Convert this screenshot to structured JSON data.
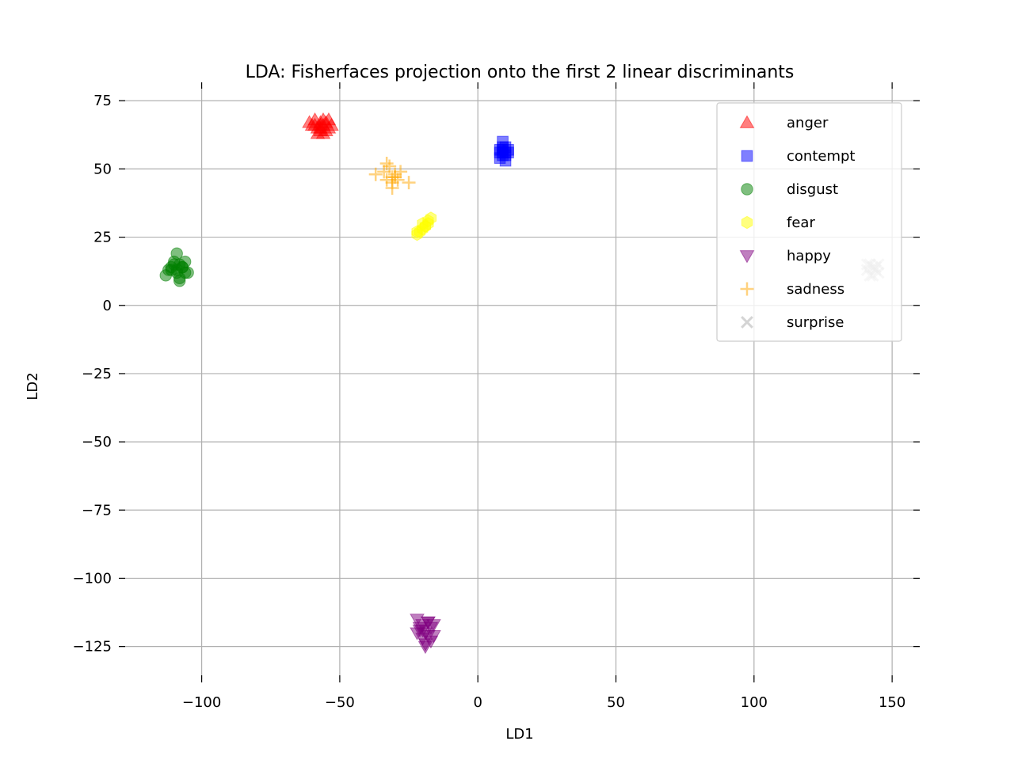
{
  "chart_data": {
    "type": "scatter",
    "title": "LDA: Fisherfaces projection onto the first 2 linear discriminants",
    "xlabel": "LD1",
    "ylabel": "LD2",
    "xlim": [
      -130,
      160
    ],
    "ylim": [
      -137,
      80
    ],
    "xticks": [
      -100,
      -50,
      0,
      50,
      100,
      150
    ],
    "xtick_labels": [
      "−100",
      "−50",
      "0",
      "50",
      "100",
      "150"
    ],
    "yticks": [
      75,
      50,
      25,
      0,
      -25,
      -50,
      -75,
      -100,
      -125
    ],
    "ytick_labels": [
      "75",
      "50",
      "25",
      "0",
      "−25",
      "−50",
      "−75",
      "−100",
      "−125"
    ],
    "grid": true,
    "legend_position": "upper right",
    "series": [
      {
        "name": "anger",
        "color": "#ff0000",
        "marker": "triangle-up",
        "x": [
          -61,
          -59,
          -57,
          -55,
          -53,
          -58,
          -56,
          -54,
          -57,
          -59,
          -55,
          -57,
          -58,
          -56,
          -60,
          -54,
          -57,
          -56
        ],
        "y": [
          67,
          68,
          66,
          67,
          66,
          65,
          68,
          65,
          64,
          66,
          64,
          67,
          63,
          63,
          66,
          68,
          65,
          66
        ]
      },
      {
        "name": "contempt",
        "color": "#0000ff",
        "marker": "square",
        "x": [
          8,
          9,
          10,
          11,
          9,
          8,
          10,
          9,
          11,
          10,
          9,
          8,
          10,
          9
        ],
        "y": [
          56,
          57,
          55,
          56,
          60,
          54,
          58,
          55,
          57,
          53,
          58,
          57,
          56,
          56
        ]
      },
      {
        "name": "disgust",
        "color": "#008000",
        "marker": "circle",
        "x": [
          -113,
          -111,
          -109,
          -108,
          -106,
          -110,
          -107,
          -109,
          -105,
          -111,
          -108,
          -106,
          -110,
          -109,
          -107,
          -112,
          -108
        ],
        "y": [
          11,
          14,
          13,
          15,
          12,
          16,
          14,
          19,
          12,
          13,
          10,
          16,
          15,
          12,
          14,
          13,
          9
        ]
      },
      {
        "name": "fear",
        "color": "#ffff00",
        "marker": "hexagon",
        "x": [
          -22,
          -20,
          -18,
          -19,
          -21,
          -17,
          -20,
          -18,
          -22,
          -19
        ],
        "y": [
          27,
          28,
          30,
          29,
          27,
          32,
          30,
          31,
          26,
          29
        ]
      },
      {
        "name": "happy",
        "color": "#800080",
        "marker": "triangle-down",
        "x": [
          -22,
          -20,
          -18,
          -17,
          -19,
          -21,
          -16,
          -18,
          -20,
          -22,
          -17,
          -19,
          -21,
          -18,
          -20,
          -16,
          -19
        ],
        "y": [
          -115,
          -117,
          -116,
          -118,
          -120,
          -119,
          -117,
          -121,
          -122,
          -120,
          -123,
          -124,
          -118,
          -116,
          -119,
          -121,
          -125
        ]
      },
      {
        "name": "sadness",
        "color": "#ffa500",
        "marker": "plus",
        "x": [
          -37,
          -34,
          -32,
          -30,
          -28,
          -33,
          -31,
          -29,
          -25,
          -31,
          -33,
          -30,
          -31
        ],
        "y": [
          48,
          49,
          51,
          47,
          49,
          46,
          45,
          46,
          45,
          43,
          52,
          48,
          47
        ]
      },
      {
        "name": "surprise",
        "color": "#a9a9a9",
        "marker": "x",
        "x": [
          141,
          143,
          145,
          142,
          144,
          143,
          141,
          145,
          142,
          144
        ],
        "y": [
          13,
          14,
          12,
          15,
          13,
          11,
          15,
          15,
          11,
          14
        ]
      }
    ]
  }
}
